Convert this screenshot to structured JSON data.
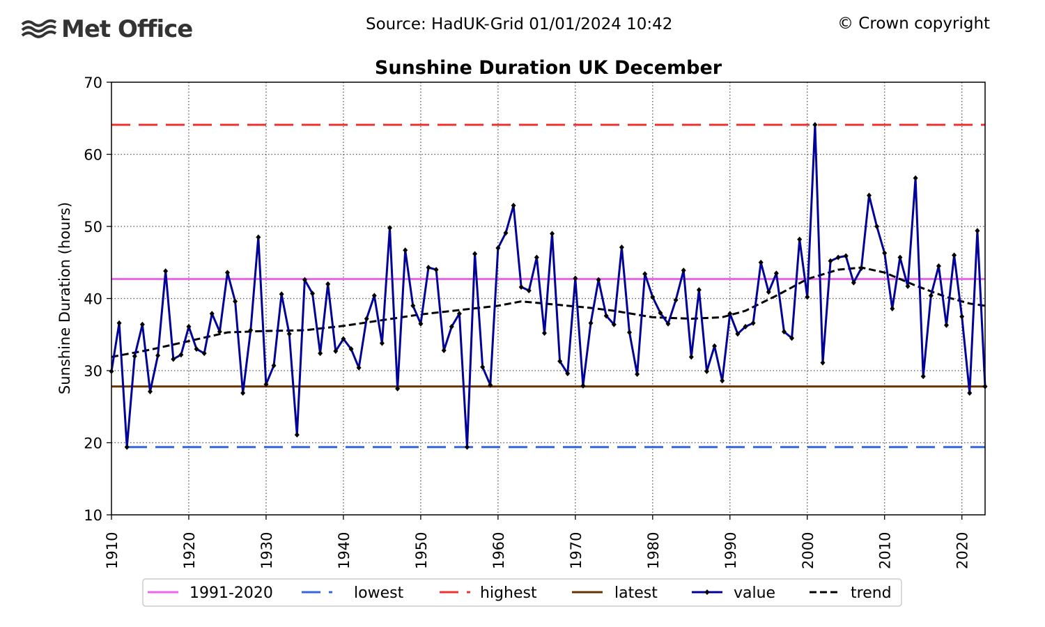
{
  "header": {
    "logo_text": "Met Office",
    "source": "Source: HadUK-Grid 01/01/2024 10:42",
    "copyright": "© Crown copyright"
  },
  "colors": {
    "baseline": "#ee66ee",
    "lowest": "#3366dd",
    "highest": "#ee3333",
    "latest": "#663300",
    "value": "#000099",
    "trend": "#000000"
  },
  "chart_data": {
    "type": "line",
    "title": "Sunshine Duration UK December",
    "xlabel": "",
    "ylabel": "Sunshine Duration (hours)",
    "xlim": [
      1910,
      2023
    ],
    "ylim": [
      10,
      70
    ],
    "xticks": [
      1910,
      1920,
      1930,
      1940,
      1950,
      1960,
      1970,
      1980,
      1990,
      2000,
      2010,
      2020
    ],
    "yticks": [
      10,
      20,
      30,
      40,
      50,
      60,
      70
    ],
    "grid": true,
    "legend_position": "bottom",
    "legend": [
      "1991-2020",
      "lowest",
      "highest",
      "latest",
      "value",
      "trend"
    ],
    "reference_lines": {
      "baseline_1991_2020": 42.7,
      "lowest": 19.4,
      "highest": 64.1,
      "latest": 27.8
    },
    "series": [
      {
        "name": "value",
        "x": [
          1910,
          1911,
          1912,
          1913,
          1914,
          1915,
          1916,
          1917,
          1918,
          1919,
          1920,
          1921,
          1922,
          1923,
          1924,
          1925,
          1926,
          1927,
          1928,
          1929,
          1930,
          1931,
          1932,
          1933,
          1934,
          1935,
          1936,
          1937,
          1938,
          1939,
          1940,
          1941,
          1942,
          1943,
          1944,
          1945,
          1946,
          1947,
          1948,
          1949,
          1950,
          1951,
          1952,
          1953,
          1954,
          1955,
          1956,
          1957,
          1958,
          1959,
          1960,
          1961,
          1962,
          1963,
          1964,
          1965,
          1966,
          1967,
          1968,
          1969,
          1970,
          1971,
          1972,
          1973,
          1974,
          1975,
          1976,
          1977,
          1978,
          1979,
          1980,
          1981,
          1982,
          1983,
          1984,
          1985,
          1986,
          1987,
          1988,
          1989,
          1990,
          1991,
          1992,
          1993,
          1994,
          1995,
          1996,
          1997,
          1998,
          1999,
          2000,
          2001,
          2002,
          2003,
          2004,
          2005,
          2006,
          2007,
          2008,
          2009,
          2010,
          2011,
          2012,
          2013,
          2014,
          2015,
          2016,
          2017,
          2018,
          2019,
          2020,
          2021,
          2022,
          2023
        ],
        "y": [
          29.9,
          36.6,
          19.4,
          32.0,
          36.4,
          27.1,
          32.1,
          43.8,
          31.6,
          32.2,
          36.1,
          33.0,
          32.4,
          37.9,
          35.4,
          43.6,
          39.6,
          26.9,
          35.6,
          48.5,
          28.1,
          30.7,
          40.6,
          35.1,
          21.1,
          42.6,
          40.7,
          32.4,
          42.0,
          32.7,
          34.4,
          33.0,
          30.4,
          37.2,
          40.4,
          33.8,
          49.8,
          27.5,
          46.7,
          39.0,
          36.5,
          44.3,
          44.0,
          32.8,
          36.1,
          37.9,
          19.4,
          46.2,
          30.5,
          28.0,
          47.0,
          49.1,
          52.9,
          41.6,
          41.1,
          45.7,
          35.2,
          49.0,
          31.3,
          29.6,
          42.8,
          27.9,
          36.6,
          42.6,
          37.6,
          36.4,
          47.1,
          35.3,
          29.5,
          43.4,
          40.2,
          38.0,
          36.5,
          39.8,
          43.9,
          31.9,
          41.2,
          29.9,
          33.4,
          28.6,
          37.9,
          35.1,
          36.1,
          36.6,
          45.0,
          40.9,
          43.5,
          35.4,
          34.5,
          48.2,
          40.2,
          64.1,
          31.1,
          45.2,
          45.7,
          45.9,
          42.2,
          44.2,
          54.3,
          50.0,
          46.3,
          38.6,
          45.7,
          41.7,
          56.7,
          29.2,
          40.4,
          44.5,
          36.3,
          46.0,
          37.5,
          26.9,
          49.4,
          27.8
        ]
      },
      {
        "name": "trend",
        "x": [
          1910,
          1915,
          1920,
          1925,
          1930,
          1935,
          1940,
          1945,
          1950,
          1955,
          1960,
          1963,
          1968,
          1972,
          1975,
          1980,
          1985,
          1989,
          1992,
          1996,
          2000,
          2004,
          2007,
          2010,
          2014,
          2018,
          2021,
          2023
        ],
        "y": [
          31.9,
          32.9,
          34.1,
          35.3,
          35.5,
          35.6,
          36.2,
          37.0,
          37.8,
          38.4,
          39.0,
          39.6,
          39.1,
          38.7,
          38.3,
          37.4,
          37.2,
          37.4,
          38.3,
          40.4,
          42.7,
          44.0,
          44.3,
          43.6,
          41.8,
          40.2,
          39.3,
          39.0
        ]
      }
    ]
  }
}
